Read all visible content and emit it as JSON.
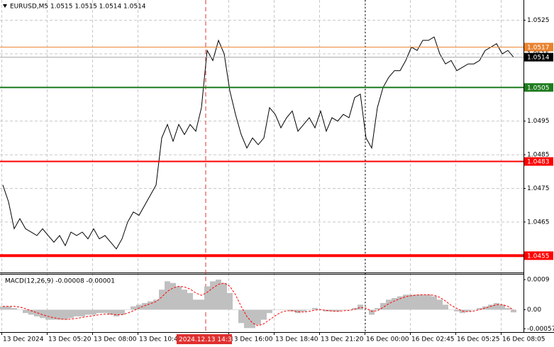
{
  "chart_data": [
    {
      "type": "line",
      "title": "EURUSD,M5  1.0515 1.0515 1.0514 1.0514",
      "ylim": [
        1.045,
        1.0531
      ],
      "yticks": [
        1.0455,
        1.0465,
        1.0475,
        1.0485,
        1.0495,
        1.0505,
        1.0515,
        1.0525
      ],
      "grid": true,
      "x_labels": [
        "13 Dec 2024",
        "13 Dec 05:20",
        "13 Dec 08:00",
        "13 Dec 10:40",
        "13 Dec 16:00",
        "13 Dec 18:40",
        "13 Dec 21:20",
        "16 Dec 00:00",
        "16 Dec 02:45",
        "16 Dec 05:25",
        "16 Dec 08:05"
      ],
      "cursor_label": "2024.12.13 14:35",
      "series": [
        {
          "color": "#000000",
          "values": [
            1.0476,
            1.0471,
            1.0463,
            1.0466,
            1.0463,
            1.0462,
            1.0461,
            1.0463,
            1.0461,
            1.0459,
            1.0461,
            1.0458,
            1.0462,
            1.0461,
            1.0462,
            1.046,
            1.0463,
            1.046,
            1.0461,
            1.0459,
            1.0457,
            1.046,
            1.0465,
            1.0468,
            1.0467,
            1.047,
            1.0473,
            1.0476,
            1.049,
            1.0494,
            1.0489,
            1.0494,
            1.0491,
            1.0494,
            1.0492,
            1.0499,
            1.0516,
            1.0513,
            1.0519,
            1.0515,
            1.0504,
            1.0497,
            1.0491,
            1.0487,
            1.049,
            1.0488,
            1.049,
            1.0499,
            1.0497,
            1.0493,
            1.0496,
            1.0498,
            1.0492,
            1.0494,
            1.0496,
            1.0493,
            1.0498,
            1.0492,
            1.0496,
            1.0495,
            1.0497,
            1.0496,
            1.0502,
            1.0503,
            1.049,
            1.0487,
            1.0499,
            1.0505,
            1.0508,
            1.051,
            1.051,
            1.0513,
            1.0517,
            1.0516,
            1.0519,
            1.0519,
            1.052,
            1.0515,
            1.0512,
            1.0513,
            1.051,
            1.0511,
            1.0512,
            1.0512,
            1.0513,
            1.0516,
            1.0517,
            1.0518,
            1.0515,
            1.0516,
            1.0514
          ]
        }
      ],
      "levels": [
        {
          "value": 1.0517,
          "color": "#e8822e",
          "width": 1
        },
        {
          "value": 1.0514,
          "color": "#000000",
          "width": 1
        },
        {
          "value": 1.0505,
          "color": "#1e7b1e",
          "width": 2
        },
        {
          "value": 1.0483,
          "color": "#ff0000",
          "width": 2
        },
        {
          "value": 1.0455,
          "color": "#ff0000",
          "width": 4
        }
      ]
    },
    {
      "type": "macd",
      "title": "MACD(12,26,9) -0.00008 -0.00001",
      "ylim": [
        -0.00067,
        0.00105
      ],
      "yticks": [
        -0.00057,
        {
          "value": 0,
          "label": "0.00"
        },
        0.0009
      ],
      "series": [
        {
          "color": "#c0c0c0",
          "values": [
            0.0001,
            0.0001,
            5e-05,
            0,
            -0.0001,
            -0.00015,
            -0.0002,
            -0.00025,
            -0.0003,
            -0.0003,
            -0.0003,
            -0.0003,
            -0.00025,
            -0.0002,
            -0.0002,
            -0.00015,
            -0.00015,
            -0.0001,
            -0.0001,
            -0.00015,
            -0.0002,
            -0.00015,
            0,
            0.0001,
            0.00015,
            0.0002,
            0.00025,
            0.0003,
            0.0006,
            0.00085,
            0.0008,
            0.0007,
            0.0006,
            0.0005,
            0.0003,
            0.0003,
            0.0007,
            0.00085,
            0.0009,
            0.0008,
            0.0005,
            0,
            -0.0004,
            -0.00055,
            -0.00055,
            -0.00045,
            -0.0003,
            -0.0001,
            0,
            0,
            0,
            -5e-05,
            -0.0001,
            -5e-05,
            0,
            5e-05,
            0,
            -5e-05,
            -5e-05,
            -5e-05,
            0,
            0,
            5e-05,
            0.00015,
            0,
            -0.00015,
            5e-05,
            0.0002,
            0.0003,
            0.00035,
            0.0004,
            0.00045,
            0.00045,
            0.00045,
            0.00045,
            0.00045,
            0.0004,
            0.0003,
            0.00015,
            0,
            -5e-05,
            -0.0001,
            -5e-05,
            0,
            5e-05,
            0.0001,
            0.00015,
            0.0002,
            0.00015,
            5e-05,
            -8e-05
          ]
        },
        {
          "color": "#ff0000",
          "values": [
            0.0001,
            0.0001,
            0.0001,
            8e-05,
            3e-05,
            -3e-05,
            -9e-05,
            -0.00015,
            -0.0002,
            -0.00024,
            -0.00027,
            -0.00029,
            -0.00028,
            -0.00026,
            -0.00023,
            -0.0002,
            -0.00018,
            -0.00015,
            -0.00013,
            -0.00013,
            -0.00015,
            -0.00015,
            -0.0001,
            -3e-05,
            5e-05,
            0.00012,
            0.00018,
            0.00024,
            0.00038,
            0.00055,
            0.00065,
            0.0007,
            0.00068,
            0.00062,
            0.0005,
            0.00043,
            0.00052,
            0.00065,
            0.00076,
            0.0008,
            0.0007,
            0.00045,
            0.0001,
            -0.0002,
            -0.0004,
            -0.00048,
            -0.00042,
            -0.0003,
            -0.00018,
            -8e-05,
            -3e-05,
            -3e-05,
            -6e-05,
            -7e-05,
            -5e-05,
            -1e-05,
            0,
            -2e-05,
            -4e-05,
            -5e-05,
            -3e-05,
            -2e-05,
            1e-05,
            7e-05,
            5e-05,
            -5e-05,
            -3e-05,
            7e-05,
            0.00018,
            0.00026,
            0.00033,
            0.00039,
            0.00042,
            0.00044,
            0.00045,
            0.00045,
            0.00043,
            0.00037,
            0.00026,
            0.00013,
            4e-05,
            -4e-05,
            -6e-05,
            -4e-05,
            0,
            5e-05,
            0.0001,
            0.00015,
            0.00015,
            0.0001,
            -1e-05
          ]
        }
      ]
    }
  ]
}
